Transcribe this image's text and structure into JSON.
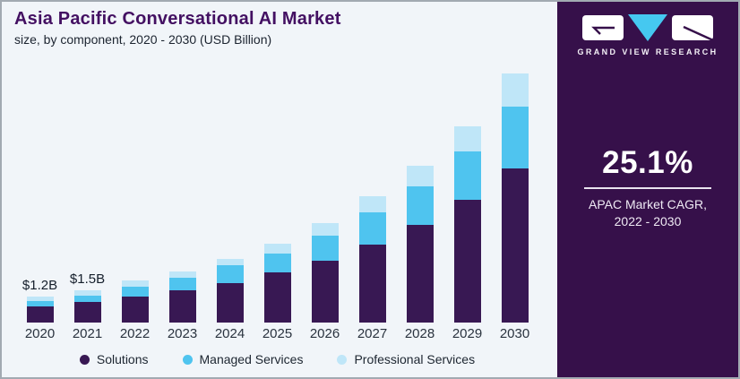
{
  "header": {
    "title": "Asia Pacific Conversational AI Market",
    "subtitle": "size, by component, 2020 - 2030 (USD Billion)"
  },
  "brand": {
    "name": "GRAND VIEW RESEARCH"
  },
  "sidebar": {
    "cagr_value": "25.1%",
    "cagr_label_line1": "APAC Market CAGR,",
    "cagr_label_line2": "2022 - 2030"
  },
  "colors": {
    "background": "#f1f5f9",
    "title_purple": "#431062",
    "panel_purple": "#36104a",
    "solutions": "#381853",
    "managed_services": "#4fc4ef",
    "professional_services": "#bfe6f8",
    "logo_triangle": "#45c8f0",
    "logo_box": "#ffffff"
  },
  "chart_data": {
    "type": "bar",
    "stacked": true,
    "title": "Asia Pacific Conversational AI Market",
    "subtitle": "size, by component, 2020 - 2030 (USD Billion)",
    "unit": "USD Billion",
    "categories": [
      "2020",
      "2021",
      "2022",
      "2023",
      "2024",
      "2025",
      "2026",
      "2027",
      "2028",
      "2029",
      "2030"
    ],
    "series": [
      {
        "name": "Solutions",
        "color": "#381853",
        "values": [
          0.75,
          0.95,
          1.2,
          1.5,
          1.8,
          2.3,
          2.85,
          3.6,
          4.5,
          5.65,
          7.1
        ]
      },
      {
        "name": "Managed Services",
        "color": "#4fc4ef",
        "values": [
          0.25,
          0.3,
          0.45,
          0.55,
          0.85,
          0.9,
          1.15,
          1.5,
          1.8,
          2.25,
          2.85
        ]
      },
      {
        "name": "Professional Services",
        "color": "#bfe6f8",
        "values": [
          0.2,
          0.25,
          0.3,
          0.3,
          0.3,
          0.45,
          0.6,
          0.75,
          0.95,
          1.15,
          1.55
        ]
      }
    ],
    "totals": [
      1.2,
      1.5,
      1.95,
      2.35,
      2.95,
      3.65,
      4.6,
      5.85,
      7.25,
      9.05,
      11.5
    ],
    "bar_labels": {
      "2020": "$1.2B",
      "2021": "$1.5B"
    },
    "ylim": [
      0,
      12
    ],
    "grid": false,
    "legend_position": "bottom",
    "legend": [
      "Solutions",
      "Managed Services",
      "Professional Services"
    ]
  }
}
